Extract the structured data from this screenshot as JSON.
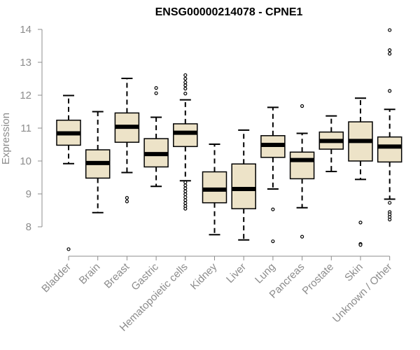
{
  "chart_data": {
    "type": "boxplot",
    "title": "ENSG00000214078 - CPNE1",
    "ylabel": "Expression",
    "xlabel": "",
    "ylim": [
      7.0,
      14.3
    ],
    "yticks": [
      8,
      9,
      10,
      11,
      12,
      13,
      14
    ],
    "box_color": "#ede3c8",
    "axis_color": "#8c8c8c",
    "categories": [
      "Bladder",
      "Brain",
      "Breast",
      "Gastric",
      "Hematopoietic cells",
      "Kidney",
      "Liver",
      "Lung",
      "Pancreas",
      "Prostate",
      "Skin",
      "Unknown / Other"
    ],
    "boxes": [
      {
        "category": "Bladder",
        "whisker_low": 9.92,
        "q1": 10.48,
        "median": 10.84,
        "q3": 11.24,
        "whisker_high": 11.99,
        "outliers": [
          7.32
        ]
      },
      {
        "category": "Brain",
        "whisker_low": 8.43,
        "q1": 9.48,
        "median": 9.94,
        "q3": 10.34,
        "whisker_high": 11.5,
        "outliers": []
      },
      {
        "category": "Breast",
        "whisker_low": 9.65,
        "q1": 10.57,
        "median": 11.04,
        "q3": 11.46,
        "whisker_high": 12.51,
        "outliers": [
          8.77,
          8.88
        ]
      },
      {
        "category": "Gastric",
        "whisker_low": 9.23,
        "q1": 9.82,
        "median": 10.21,
        "q3": 10.68,
        "whisker_high": 11.33,
        "outliers": [
          12.06,
          12.22
        ]
      },
      {
        "category": "Hematopoietic cells",
        "whisker_low": 9.4,
        "q1": 10.44,
        "median": 10.86,
        "q3": 11.13,
        "whisker_high": 11.86,
        "outliers": [
          12.61,
          12.5,
          12.39,
          12.3,
          12.2,
          12.05,
          9.35,
          9.26,
          9.17,
          9.08,
          8.99,
          8.9,
          8.81,
          8.72,
          8.63,
          8.55
        ]
      },
      {
        "category": "Kidney",
        "whisker_low": 7.76,
        "q1": 8.73,
        "median": 9.13,
        "q3": 9.67,
        "whisker_high": 10.51,
        "outliers": []
      },
      {
        "category": "Liver",
        "whisker_low": 7.6,
        "q1": 8.55,
        "median": 9.15,
        "q3": 9.91,
        "whisker_high": 10.94,
        "outliers": []
      },
      {
        "category": "Lung",
        "whisker_low": 9.15,
        "q1": 10.11,
        "median": 10.49,
        "q3": 10.77,
        "whisker_high": 11.63,
        "outliers": [
          8.53,
          7.56
        ]
      },
      {
        "category": "Pancreas",
        "whisker_low": 8.58,
        "q1": 9.46,
        "median": 10.03,
        "q3": 10.27,
        "whisker_high": 10.84,
        "outliers": [
          11.67,
          7.7
        ]
      },
      {
        "category": "Prostate",
        "whisker_low": 9.68,
        "q1": 10.36,
        "median": 10.61,
        "q3": 10.88,
        "whisker_high": 11.37,
        "outliers": []
      },
      {
        "category": "Skin",
        "whisker_low": 9.44,
        "q1": 10.0,
        "median": 10.61,
        "q3": 11.19,
        "whisker_high": 11.91,
        "outliers": [
          8.13,
          7.48,
          7.45
        ]
      },
      {
        "category": "Unknown / Other",
        "whisker_low": 8.84,
        "q1": 9.97,
        "median": 10.44,
        "q3": 10.73,
        "whisker_high": 11.57,
        "outliers": [
          13.98,
          13.37,
          13.26,
          12.13,
          8.73,
          8.45,
          8.38,
          8.3,
          8.22
        ]
      }
    ]
  }
}
